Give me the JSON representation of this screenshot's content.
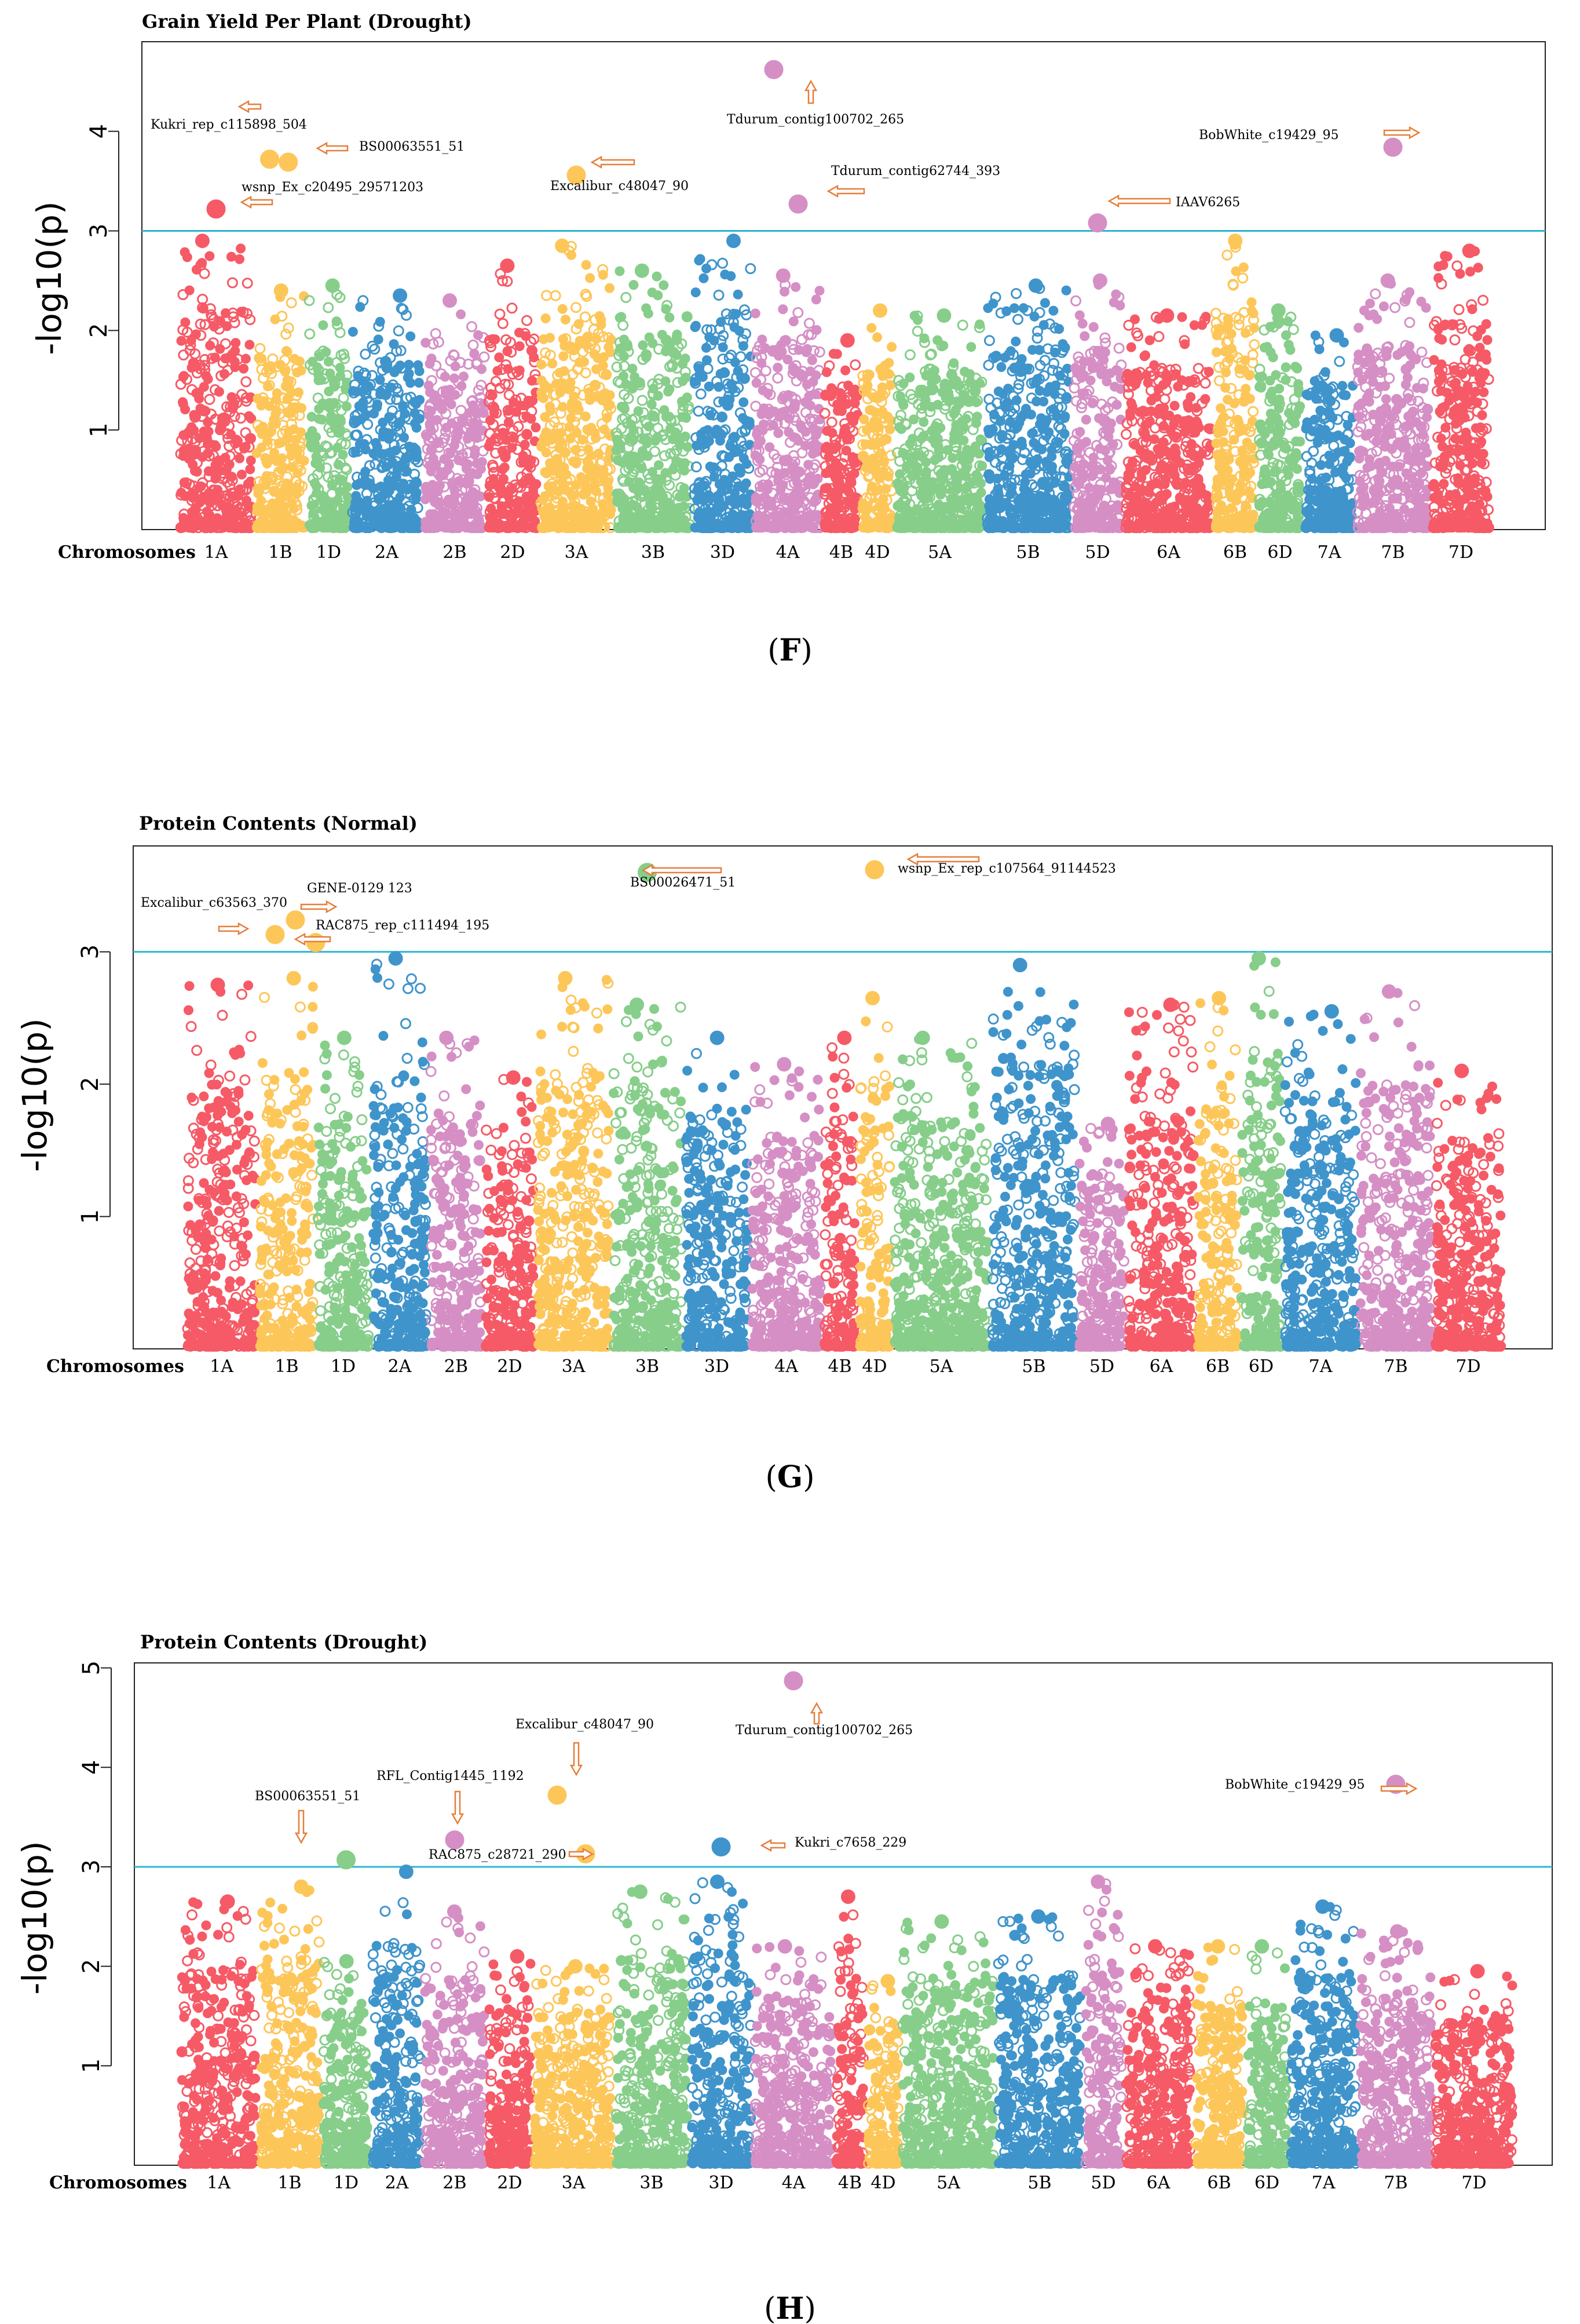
{
  "figure": {
    "panels": [
      {
        "label_prefix": "(",
        "label": "F",
        "label_suffix": ")"
      },
      {
        "label_prefix": "(",
        "label": "G",
        "label_suffix": ")"
      },
      {
        "label_prefix": "(",
        "label": "H",
        "label_suffix": ")"
      }
    ]
  },
  "chart_data": [
    {
      "type": "scatter",
      "subtype": "manhattan",
      "title": "Grain Yield Per Plant (Drought)",
      "xlabel": "Chromosomes",
      "ylabel": "-log10(p)",
      "ylim": [
        0,
        4.9
      ],
      "yticks": [
        1,
        2,
        3,
        4
      ],
      "threshold": 3,
      "threshold_color": "#2EB5CF",
      "chromosomes": [
        "1A",
        "1B",
        "1D",
        "2A",
        "2B",
        "2D",
        "3A",
        "3B",
        "3D",
        "4A",
        "4B",
        "4D",
        "5A",
        "5B",
        "5D",
        "6A",
        "6B",
        "6D",
        "7A",
        "7B",
        "7D"
      ],
      "chromosome_colors": [
        "#F55A66",
        "#FDC659",
        "#86CE8A",
        "#3F94CB",
        "#D58FC5",
        "#F55A66",
        "#FDC659",
        "#86CE8A",
        "#3F94CB",
        "#D58FC5",
        "#F55A66",
        "#FDC659",
        "#86CE8A",
        "#3F94CB",
        "#D58FC5",
        "#F55A66",
        "#FDC659",
        "#86CE8A",
        "#3F94CB",
        "#D58FC5",
        "#F55A66"
      ],
      "chromosome_max": [
        2.9,
        2.4,
        2.45,
        2.35,
        2.3,
        2.65,
        2.85,
        2.6,
        2.9,
        2.55,
        1.9,
        2.2,
        2.15,
        2.45,
        2.5,
        2.15,
        2.9,
        2.2,
        1.95,
        2.5,
        2.8
      ],
      "significant_snps": [
        {
          "name": "Kukri_rep_c115898_504",
          "chromosome": "1B",
          "value": 3.72
        },
        {
          "name": "BS00063551_51",
          "chromosome": "1B",
          "value": 3.69
        },
        {
          "name": "wsnp_Ex_c20495_29571203",
          "chromosome": "1A",
          "value": 3.22
        },
        {
          "name": "Excalibur_c48047_90",
          "chromosome": "3A",
          "value": 3.56
        },
        {
          "name": "Tdurum_contig100702_265",
          "chromosome": "4A",
          "value": 4.62
        },
        {
          "name": "Tdurum_contig62744_393",
          "chromosome": "4A",
          "value": 3.27
        },
        {
          "name": "IAAV6265",
          "chromosome": "5D",
          "value": 3.08
        },
        {
          "name": "BobWhite_c19429_95",
          "chromosome": "7B",
          "value": 3.84
        }
      ],
      "annotations": [
        {
          "text": "Kukri_rep_c115898_504"
        },
        {
          "text": "BS00063551_51"
        },
        {
          "text": "wsnp_Ex_c20495_29571203"
        },
        {
          "text": "Excalibur_c48047_90"
        },
        {
          "text": "Tdurum_contig100702_265"
        },
        {
          "text": "Tdurum_contig62744_393"
        },
        {
          "text": "IAAV6265"
        },
        {
          "text": "BobWhite_c19429_95"
        }
      ]
    },
    {
      "type": "scatter",
      "subtype": "manhattan",
      "title": "Protein Contents (Normal)",
      "xlabel": "Chromosomes",
      "ylabel": "-log10(p)",
      "ylim": [
        0,
        3.8
      ],
      "yticks": [
        1,
        2,
        3
      ],
      "threshold": 3,
      "threshold_color": "#2EB5CF",
      "chromosomes": [
        "1A",
        "1B",
        "1D",
        "2A",
        "2B",
        "2D",
        "3A",
        "3B",
        "3D",
        "4A",
        "4B",
        "4D",
        "5A",
        "5B",
        "5D",
        "6A",
        "6B",
        "6D",
        "7A",
        "7B",
        "7D"
      ],
      "chromosome_colors": [
        "#F55A66",
        "#FDC659",
        "#86CE8A",
        "#3F94CB",
        "#D58FC5",
        "#F55A66",
        "#FDC659",
        "#86CE8A",
        "#3F94CB",
        "#D58FC5",
        "#F55A66",
        "#FDC659",
        "#86CE8A",
        "#3F94CB",
        "#D58FC5",
        "#F55A66",
        "#FDC659",
        "#86CE8A",
        "#3F94CB",
        "#D58FC5",
        "#F55A66"
      ],
      "chromosome_max": [
        2.75,
        2.8,
        2.35,
        2.95,
        2.35,
        2.05,
        2.8,
        2.6,
        2.35,
        2.15,
        2.35,
        2.65,
        2.35,
        2.9,
        1.7,
        2.6,
        2.65,
        2.95,
        2.55,
        2.7,
        2.1
      ],
      "significant_snps": [
        {
          "name": "Excalibur_c63563_370",
          "chromosome": "1B",
          "value": 3.13
        },
        {
          "name": "GENE-0129_123",
          "chromosome": "1B",
          "value": 3.24
        },
        {
          "name": "RAC875_rep_c111494_195",
          "chromosome": "1B",
          "value": 3.07
        },
        {
          "name": "BS00026471_51",
          "chromosome": "3B",
          "value": 3.6
        },
        {
          "name": "wsnp_Ex_rep_c107564_91144523",
          "chromosome": "4D",
          "value": 3.62
        }
      ],
      "annotations": [
        {
          "text": "Excalibur_c63563_370"
        },
        {
          "text": "GENE-0129  123"
        },
        {
          "text": "RAC875_rep_c111494_195"
        },
        {
          "text": "BS00026471_51"
        },
        {
          "text": "wsnp_Ex_rep_c107564_91144523"
        }
      ]
    },
    {
      "type": "scatter",
      "subtype": "manhattan",
      "title": "Protein Contents (Drought)",
      "xlabel": "Chromosomes",
      "ylabel": "-log10(p)",
      "ylim": [
        0,
        5.05
      ],
      "yticks": [
        1,
        2,
        3,
        4,
        5
      ],
      "threshold": 3,
      "threshold_color": "#2EB5CF",
      "chromosomes": [
        "1A",
        "1B",
        "1D",
        "2A",
        "2B",
        "2D",
        "3A",
        "3B",
        "3D",
        "4A",
        "4B",
        "4D",
        "5A",
        "5B",
        "5D",
        "6A",
        "6B",
        "6D",
        "7A",
        "7B",
        "7D"
      ],
      "chromosome_colors": [
        "#F55A66",
        "#FDC659",
        "#86CE8A",
        "#3F94CB",
        "#D58FC5",
        "#F55A66",
        "#FDC659",
        "#86CE8A",
        "#3F94CB",
        "#D58FC5",
        "#F55A66",
        "#FDC659",
        "#86CE8A",
        "#3F94CB",
        "#D58FC5",
        "#F55A66",
        "#FDC659",
        "#86CE8A",
        "#3F94CB",
        "#D58FC5",
        "#F55A66"
      ],
      "chromosome_max": [
        2.65,
        2.8,
        2.05,
        2.95,
        2.55,
        2.1,
        2.0,
        2.75,
        2.85,
        2.2,
        2.7,
        1.85,
        2.45,
        2.5,
        2.85,
        2.2,
        2.2,
        2.2,
        2.6,
        2.35,
        1.95
      ],
      "significant_snps": [
        {
          "name": "BS00063551_51",
          "chromosome": "1D",
          "value": 3.07
        },
        {
          "name": "RFL_Contig1445_1192",
          "chromosome": "2B",
          "value": 3.27
        },
        {
          "name": "Excalibur_c48047_90",
          "chromosome": "3A",
          "value": 3.72
        },
        {
          "name": "RAC875_c28721_290",
          "chromosome": "3A",
          "value": 3.13
        },
        {
          "name": "Tdurum_contig100702_265",
          "chromosome": "4A",
          "value": 4.87
        },
        {
          "name": "Kukri_c7658_229",
          "chromosome": "3D",
          "value": 3.2
        },
        {
          "name": "BobWhite_c19429_95",
          "chromosome": "7B",
          "value": 3.83
        }
      ],
      "annotations": [
        {
          "text": "BS00063551_51"
        },
        {
          "text": "RFL_Contig1445_1192"
        },
        {
          "text": "Excalibur_c48047_90"
        },
        {
          "text": "RAC875_c28721_290"
        },
        {
          "text": "Tdurum_contig100702_265"
        },
        {
          "text": "Kukri_c7658_229"
        },
        {
          "text": "BobWhite_c19429_95"
        }
      ]
    }
  ]
}
